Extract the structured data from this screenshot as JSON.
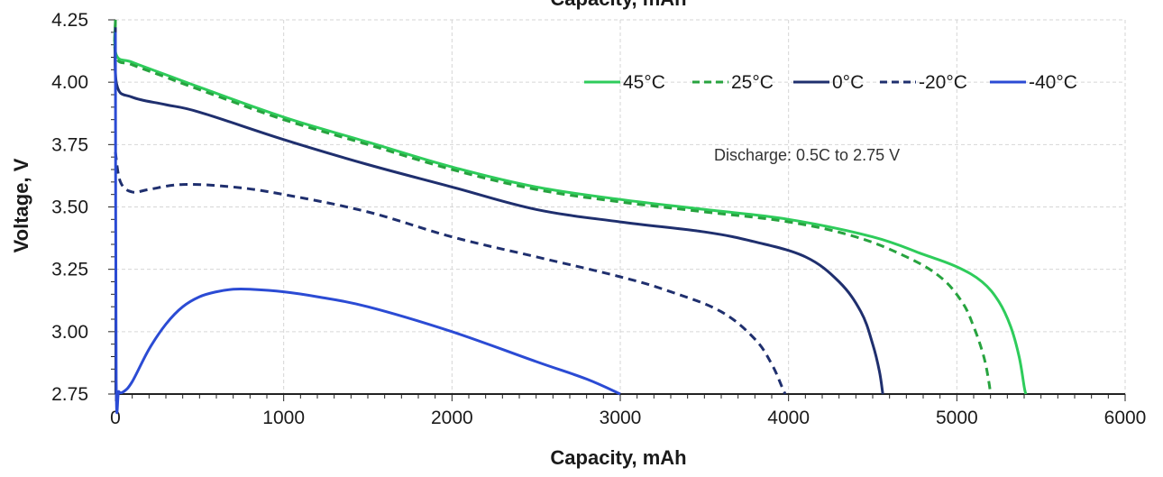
{
  "chart_data": {
    "type": "line",
    "title": "Capacity, mAh",
    "xlabel": "Capacity, mAh",
    "ylabel": "Voltage, V",
    "xlim": [
      0,
      6000
    ],
    "ylim": [
      2.75,
      4.25
    ],
    "x_ticks": [
      "0",
      "1000",
      "2000",
      "3000",
      "4000",
      "5000",
      "6000"
    ],
    "y_ticks": [
      "2.75",
      "3.00",
      "3.25",
      "3.50",
      "3.75",
      "4.00",
      "4.25"
    ],
    "grid": true,
    "legend_position": "top-right",
    "annotation": "Discharge: 0.5C to 2.75 V",
    "series": [
      {
        "name": "45°C",
        "color": "#2ecc5b",
        "dash": "solid",
        "points": [
          [
            0,
            4.25
          ],
          [
            5,
            4.11
          ],
          [
            100,
            4.08
          ],
          [
            300,
            4.03
          ],
          [
            500,
            3.98
          ],
          [
            1000,
            3.86
          ],
          [
            1500,
            3.76
          ],
          [
            2000,
            3.66
          ],
          [
            2500,
            3.58
          ],
          [
            3000,
            3.53
          ],
          [
            3500,
            3.49
          ],
          [
            4000,
            3.45
          ],
          [
            4500,
            3.38
          ],
          [
            4800,
            3.31
          ],
          [
            5000,
            3.26
          ],
          [
            5150,
            3.2
          ],
          [
            5250,
            3.12
          ],
          [
            5320,
            3.02
          ],
          [
            5370,
            2.9
          ],
          [
            5400,
            2.78
          ],
          [
            5410,
            2.75
          ]
        ]
      },
      {
        "name": "25°C",
        "color": "#27a33f",
        "dash": "dashed",
        "points": [
          [
            0,
            4.25
          ],
          [
            5,
            4.1
          ],
          [
            100,
            4.07
          ],
          [
            300,
            4.02
          ],
          [
            500,
            3.97
          ],
          [
            1000,
            3.85
          ],
          [
            1500,
            3.75
          ],
          [
            2000,
            3.65
          ],
          [
            2500,
            3.57
          ],
          [
            3000,
            3.52
          ],
          [
            3500,
            3.48
          ],
          [
            4000,
            3.44
          ],
          [
            4400,
            3.38
          ],
          [
            4700,
            3.3
          ],
          [
            4900,
            3.22
          ],
          [
            5030,
            3.12
          ],
          [
            5100,
            3.02
          ],
          [
            5160,
            2.9
          ],
          [
            5190,
            2.8
          ],
          [
            5200,
            2.75
          ]
        ]
      },
      {
        "name": "0°C",
        "color": "#1f2f6e",
        "dash": "solid",
        "points": [
          [
            0,
            4.22
          ],
          [
            8,
            3.99
          ],
          [
            100,
            3.94
          ],
          [
            300,
            3.91
          ],
          [
            500,
            3.88
          ],
          [
            1000,
            3.77
          ],
          [
            1500,
            3.67
          ],
          [
            2000,
            3.58
          ],
          [
            2500,
            3.49
          ],
          [
            3000,
            3.44
          ],
          [
            3500,
            3.4
          ],
          [
            3800,
            3.36
          ],
          [
            4100,
            3.3
          ],
          [
            4300,
            3.2
          ],
          [
            4430,
            3.08
          ],
          [
            4500,
            2.95
          ],
          [
            4540,
            2.84
          ],
          [
            4560,
            2.75
          ]
        ]
      },
      {
        "name": "-20°C",
        "color": "#1f2f6e",
        "dash": "dashed",
        "points": [
          [
            0,
            3.72
          ],
          [
            30,
            3.6
          ],
          [
            100,
            3.56
          ],
          [
            200,
            3.57
          ],
          [
            400,
            3.59
          ],
          [
            700,
            3.58
          ],
          [
            1000,
            3.55
          ],
          [
            1500,
            3.48
          ],
          [
            2000,
            3.38
          ],
          [
            2500,
            3.3
          ],
          [
            3000,
            3.22
          ],
          [
            3300,
            3.16
          ],
          [
            3600,
            3.08
          ],
          [
            3800,
            2.97
          ],
          [
            3900,
            2.87
          ],
          [
            3960,
            2.78
          ],
          [
            3980,
            2.75
          ]
        ]
      },
      {
        "name": "-40°C",
        "color": "#2b4bd4",
        "dash": "solid",
        "points": [
          [
            0,
            4.2
          ],
          [
            5,
            2.8
          ],
          [
            20,
            2.76
          ],
          [
            50,
            2.76
          ],
          [
            100,
            2.8
          ],
          [
            200,
            2.93
          ],
          [
            300,
            3.03
          ],
          [
            400,
            3.1
          ],
          [
            500,
            3.14
          ],
          [
            600,
            3.16
          ],
          [
            700,
            3.17
          ],
          [
            800,
            3.17
          ],
          [
            1000,
            3.16
          ],
          [
            1200,
            3.14
          ],
          [
            1500,
            3.1
          ],
          [
            2000,
            3
          ],
          [
            2500,
            2.88
          ],
          [
            2800,
            2.81
          ],
          [
            3000,
            2.75
          ]
        ]
      }
    ]
  }
}
